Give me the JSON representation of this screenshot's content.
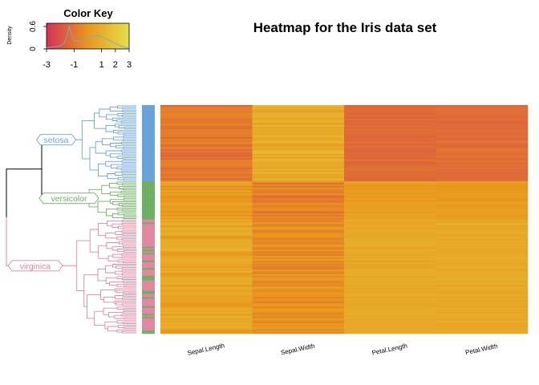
{
  "chart_data": {
    "type": "heatmap",
    "title": "Heatmap for the Iris data set",
    "columns": [
      "Sepal.Length",
      "Sepal.Width",
      "Petal.Length",
      "Petal.Width"
    ],
    "row_count": 150,
    "color_scale": {
      "low": "#d6305a",
      "mid": "#e8971c",
      "high": "#e6df4c",
      "range": [
        -3,
        3
      ]
    },
    "column_profiles": [
      {
        "base": -0.2,
        "variation": 0.55
      },
      {
        "base": 1.0,
        "variation": 0.6
      },
      {
        "base": -0.7,
        "variation": 0.25
      },
      {
        "base": -0.75,
        "variation": 0.25
      }
    ],
    "row_groups": [
      {
        "name": "setosa",
        "rows": 50,
        "color": "#6aa3dc",
        "mean_values": [
          -1.0,
          0.85,
          -1.3,
          -1.25
        ]
      },
      {
        "name": "versicolor",
        "rows": 25,
        "color": "#6db064",
        "mean_values": [
          0.1,
          -0.65,
          0.28,
          0.17
        ]
      },
      {
        "name": "virginica",
        "rows": 75,
        "color": "#e187a0",
        "mean_values": [
          0.55,
          -0.15,
          0.7,
          0.75
        ]
      }
    ],
    "side_colors": [
      "#6aa3dc",
      "#6db064",
      "#e187a0"
    ],
    "color_key": {
      "title": "Color Key",
      "ylabel": "Density",
      "ticks": [
        -3,
        -1,
        1,
        2,
        3
      ],
      "density_ticks": [
        "0",
        "0.6"
      ],
      "density_curve": [
        [
          -3,
          0.05
        ],
        [
          -2.5,
          0.08
        ],
        [
          -2,
          0.12
        ],
        [
          -1.7,
          0.25
        ],
        [
          -1.5,
          0.55
        ],
        [
          -1.35,
          0.95
        ],
        [
          -1.2,
          0.6
        ],
        [
          -1.0,
          0.35
        ],
        [
          -0.6,
          0.3
        ],
        [
          -0.2,
          0.4
        ],
        [
          0.2,
          0.55
        ],
        [
          0.5,
          0.5
        ],
        [
          0.8,
          0.58
        ],
        [
          1.1,
          0.48
        ],
        [
          1.5,
          0.38
        ],
        [
          2.0,
          0.22
        ],
        [
          2.5,
          0.1
        ],
        [
          3.0,
          0.04
        ]
      ]
    }
  }
}
